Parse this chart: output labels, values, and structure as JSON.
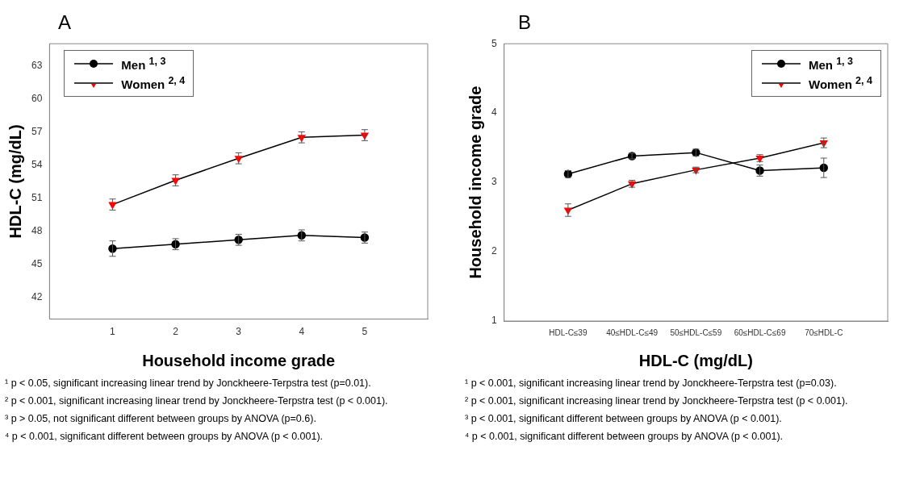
{
  "chart_data": [
    {
      "type": "line",
      "title": "A",
      "xlabel": "Household income grade",
      "ylabel": "HDL-C (mg/dL)",
      "x": [
        1,
        2,
        3,
        4,
        5
      ],
      "xlim": [
        0,
        6
      ],
      "xticks": [
        1,
        2,
        3,
        4,
        5
      ],
      "ylim": [
        40,
        65
      ],
      "yticks": [
        42,
        45,
        48,
        51,
        54,
        57,
        60,
        63
      ],
      "series": [
        {
          "name": "Men $^{1, 3}$",
          "color": "#000000",
          "marker": "circle",
          "values": [
            46.4,
            46.8,
            47.2,
            47.6,
            47.4
          ],
          "errors": [
            0.7,
            0.5,
            0.5,
            0.5,
            0.5
          ]
        },
        {
          "name": "Women $^{2, 4}$",
          "color": "#ff0000",
          "marker": "triangle",
          "values": [
            50.4,
            52.6,
            54.6,
            56.5,
            56.7
          ],
          "errors": [
            0.5,
            0.5,
            0.5,
            0.5,
            0.5
          ]
        }
      ],
      "legend": "top left",
      "grid": false,
      "annotations": [
        "¹ p < 0.05, significant increasing linear trend by Jonckheere-Terpstra test (p=0.01).",
        "² p < 0.001, significant increasing linear trend by Jonckheere-Terpstra test (p < 0.001).",
        "³ p > 0.05, not significant different between groups by ANOVA (p=0.6).",
        "⁴ p < 0.001, significant different between groups by ANOVA (p < 0.001)."
      ]
    },
    {
      "type": "line",
      "title": "B",
      "xlabel": "HDL-C (mg/dL)",
      "ylabel": "Household income grade",
      "categories": [
        "HDL-C≤39",
        "40≤HDL-C≤49",
        "50≤HDL-C≤59",
        "60≤HDL-C≤69",
        "70≤HDL-C"
      ],
      "ylim": [
        1,
        5
      ],
      "yticks": [
        1,
        2,
        3,
        4,
        5
      ],
      "series": [
        {
          "name": "Men $^{1, 3}$",
          "color": "#000000",
          "marker": "circle",
          "values": [
            3.12,
            3.38,
            3.43,
            3.17,
            3.21
          ],
          "errors": [
            0.05,
            0.04,
            0.05,
            0.08,
            0.14
          ]
        },
        {
          "name": "Women $^{2, 4}$",
          "color": "#ff0000",
          "marker": "triangle",
          "values": [
            2.6,
            2.98,
            3.18,
            3.35,
            3.57
          ],
          "errors": [
            0.09,
            0.05,
            0.04,
            0.05,
            0.07
          ]
        }
      ],
      "legend": "top right",
      "grid": false,
      "annotations": [
        "¹ p < 0.001, significant increasing linear trend by Jonckheere-Terpstra test (p=0.03).",
        "² p < 0.001, significant increasing linear trend by Jonckheere-Terpstra test (p < 0.001).",
        "³ p < 0.001, significant different between groups by ANOVA (p < 0.001).",
        "⁴ p < 0.001, significant different between groups by ANOVA (p < 0.001)."
      ]
    }
  ]
}
